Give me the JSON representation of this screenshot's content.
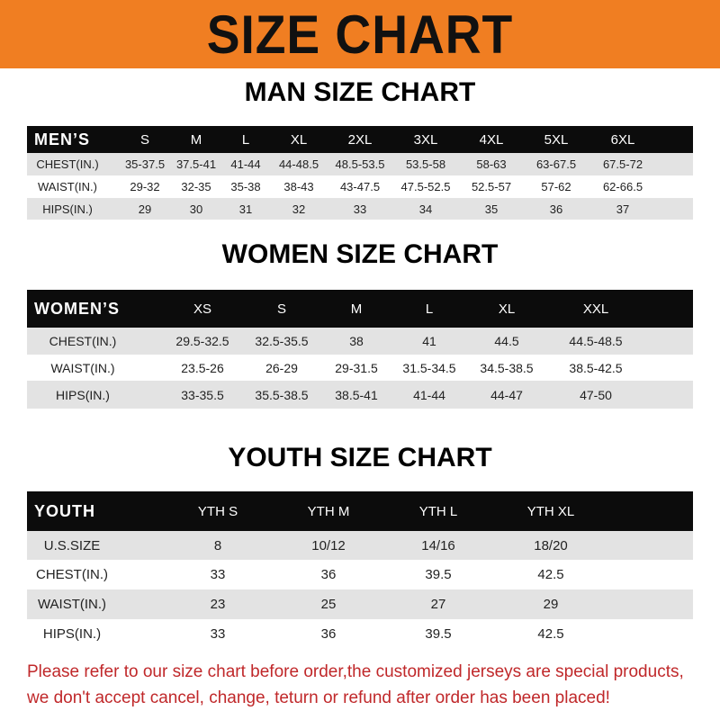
{
  "banner": {
    "title": "SIZE CHART",
    "color": "#f07e22"
  },
  "men": {
    "title": "MAN SIZE CHART",
    "header": [
      "MEN’S",
      "S",
      "M",
      "L",
      "XL",
      "2XL",
      "3XL",
      "4XL",
      "5XL",
      "6XL"
    ],
    "rows": [
      [
        "CHEST(IN.)",
        "35-37.5",
        "37.5-41",
        "41-44",
        "44-48.5",
        "48.5-53.5",
        "53.5-58",
        "58-63",
        "63-67.5",
        "67.5-72"
      ],
      [
        "WAIST(IN.)",
        "29-32",
        "32-35",
        "35-38",
        "38-43",
        "43-47.5",
        "47.5-52.5",
        "52.5-57",
        "57-62",
        "62-66.5"
      ],
      [
        "HIPS(IN.)",
        "29",
        "30",
        "31",
        "32",
        "33",
        "34",
        "35",
        "36",
        "37"
      ]
    ]
  },
  "women": {
    "title": "WOMEN SIZE CHART",
    "header": [
      "WOMEN’S",
      "XS",
      "S",
      "M",
      "L",
      "XL",
      "XXL"
    ],
    "rows": [
      [
        "CHEST(IN.)",
        "29.5-32.5",
        "32.5-35.5",
        "38",
        "41",
        "44.5",
        "44.5-48.5"
      ],
      [
        "WAIST(IN.)",
        "23.5-26",
        "26-29",
        "29-31.5",
        "31.5-34.5",
        "34.5-38.5",
        "38.5-42.5"
      ],
      [
        "HIPS(IN.)",
        "33-35.5",
        "35.5-38.5",
        "38.5-41",
        "41-44",
        "44-47",
        "47-50"
      ]
    ]
  },
  "youth": {
    "title": "YOUTH SIZE CHART",
    "header": [
      "YOUTH",
      "YTH S",
      "YTH M",
      "YTH L",
      "YTH XL"
    ],
    "rows": [
      [
        "U.S.SIZE",
        "8",
        "10/12",
        "14/16",
        "18/20"
      ],
      [
        "CHEST(IN.)",
        "33",
        "36",
        "39.5",
        "42.5"
      ],
      [
        "WAIST(IN.)",
        "23",
        "25",
        "27",
        "29"
      ],
      [
        "HIPS(IN.)",
        "33",
        "36",
        "39.5",
        "42.5"
      ]
    ]
  },
  "notice": {
    "line1": "Please refer to our size chart before order,the customized jerseys are special products,",
    "line2": "we don't accept cancel, change, teturn or refund after order has been placed!",
    "color": "#c0282a"
  }
}
